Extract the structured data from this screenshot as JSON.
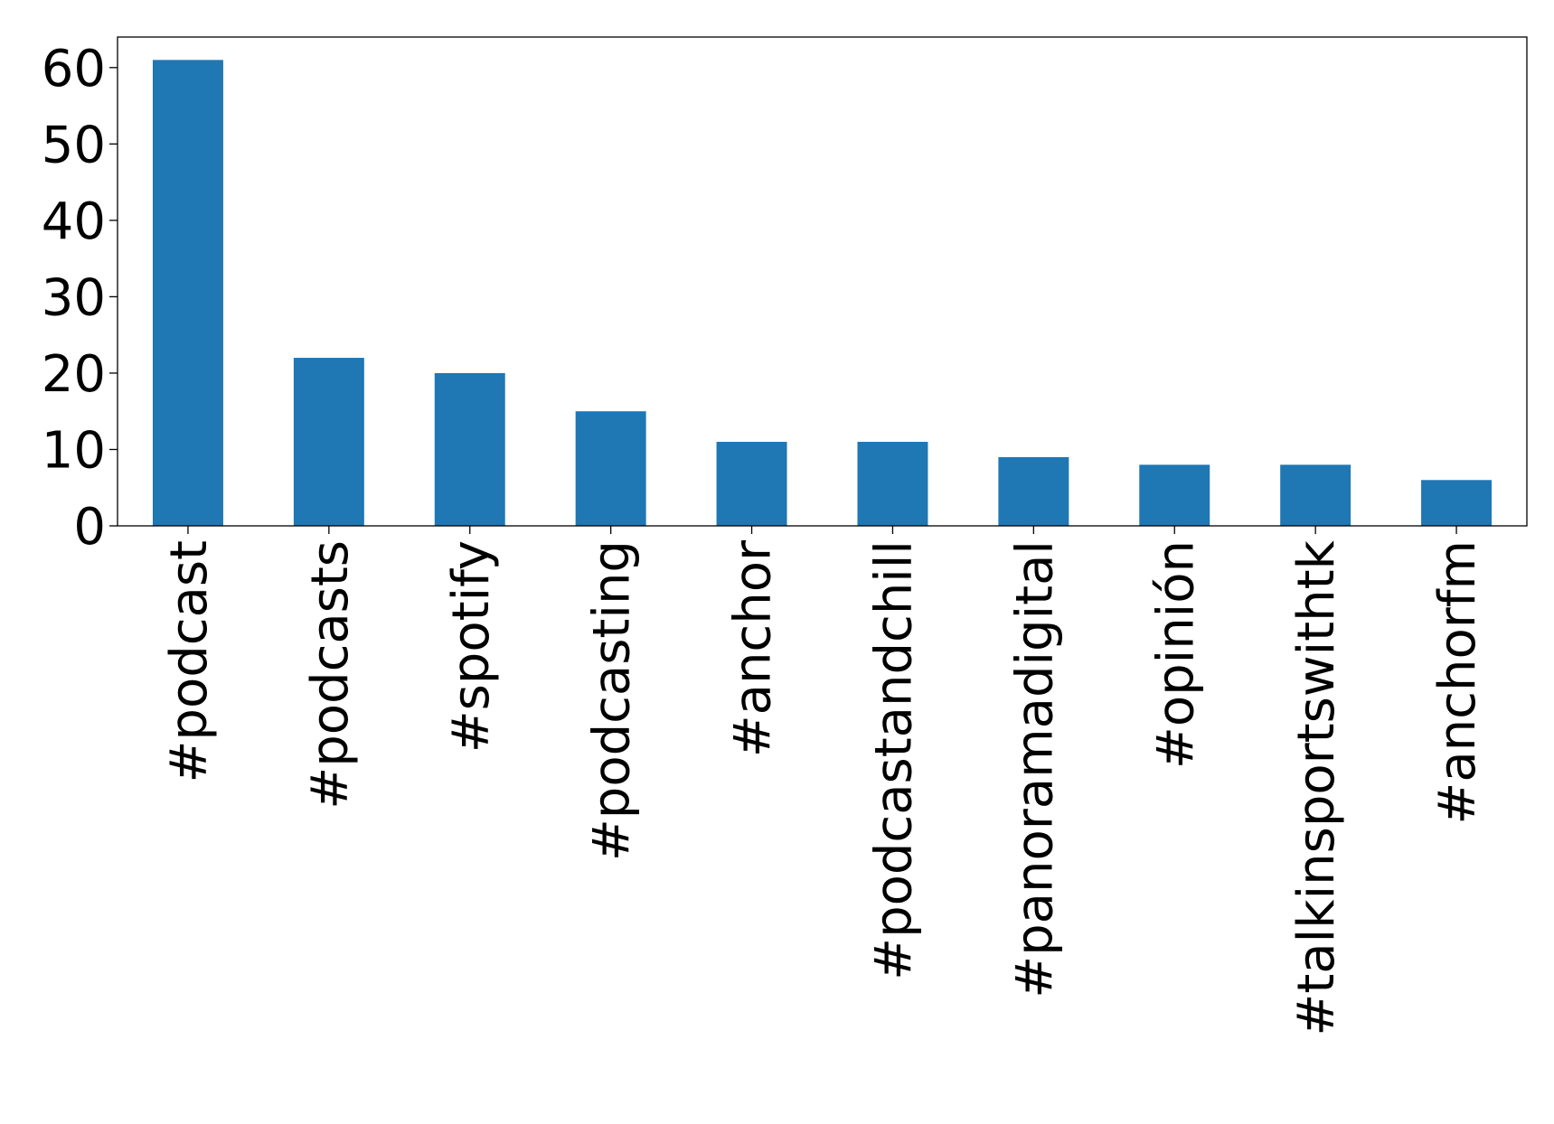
{
  "chart_data": {
    "type": "bar",
    "title": "",
    "xlabel": "",
    "ylabel": "",
    "categories": [
      "#podcast",
      "#podcasts",
      "#spotify",
      "#podcasting",
      "#anchor",
      "#podcastandchill",
      "#panoramadigital",
      "#opinión",
      "#talkinsportswithtk",
      "#anchorfm"
    ],
    "values": [
      61,
      22,
      20,
      15,
      11,
      11,
      9,
      8,
      8,
      6
    ],
    "ylim": [
      0,
      64
    ],
    "yticks": [
      0,
      10,
      20,
      30,
      40,
      50,
      60
    ],
    "bar_color": "#1f77b4",
    "grid": false,
    "legend": "none"
  }
}
